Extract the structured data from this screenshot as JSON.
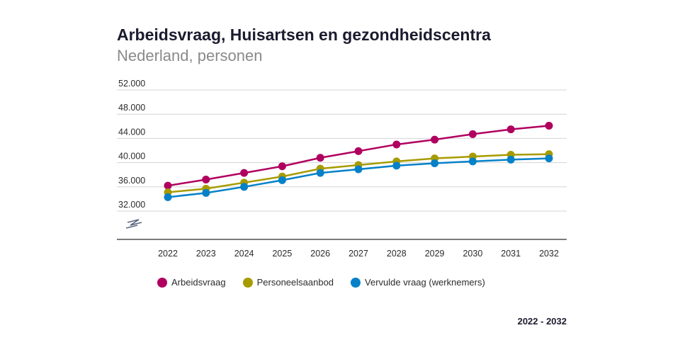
{
  "header": {
    "title": "Arbeidsvraag, Huisartsen en gezondheidscentra",
    "subtitle": "Nederland, personen"
  },
  "chart_data": {
    "type": "line",
    "title": "Arbeidsvraag, Huisartsen en gezondheidscentra",
    "subtitle": "Nederland, personen",
    "x": [
      "2022",
      "2023",
      "2024",
      "2025",
      "2026",
      "2027",
      "2028",
      "2029",
      "2030",
      "2031",
      "2032"
    ],
    "y_ticks": [
      32000,
      36000,
      40000,
      44000,
      48000,
      52000
    ],
    "y_tick_labels": [
      "32.000",
      "36.000",
      "40.000",
      "44.000",
      "48.000",
      "52.000"
    ],
    "ylim": [
      32000,
      52000
    ],
    "y_axis_break": true,
    "xlabel": "",
    "ylabel": "",
    "legend_position": "bottom",
    "series": [
      {
        "name": "Arbeidsvraag",
        "color": "#b0005f",
        "values": [
          36200,
          37200,
          38300,
          39400,
          40800,
          41900,
          43000,
          43800,
          44700,
          45500,
          46100
        ]
      },
      {
        "name": "Personeelsaanbod",
        "color": "#a79b00",
        "values": [
          35100,
          35700,
          36700,
          37700,
          39000,
          39600,
          40200,
          40700,
          41000,
          41300,
          41400
        ]
      },
      {
        "name": "Vervulde vraag (werknemers)",
        "color": "#0581c8",
        "values": [
          34300,
          35000,
          36000,
          37100,
          38300,
          38900,
          39500,
          39900,
          40200,
          40500,
          40700
        ]
      }
    ]
  },
  "footer": {
    "period": "2022 - 2032"
  }
}
